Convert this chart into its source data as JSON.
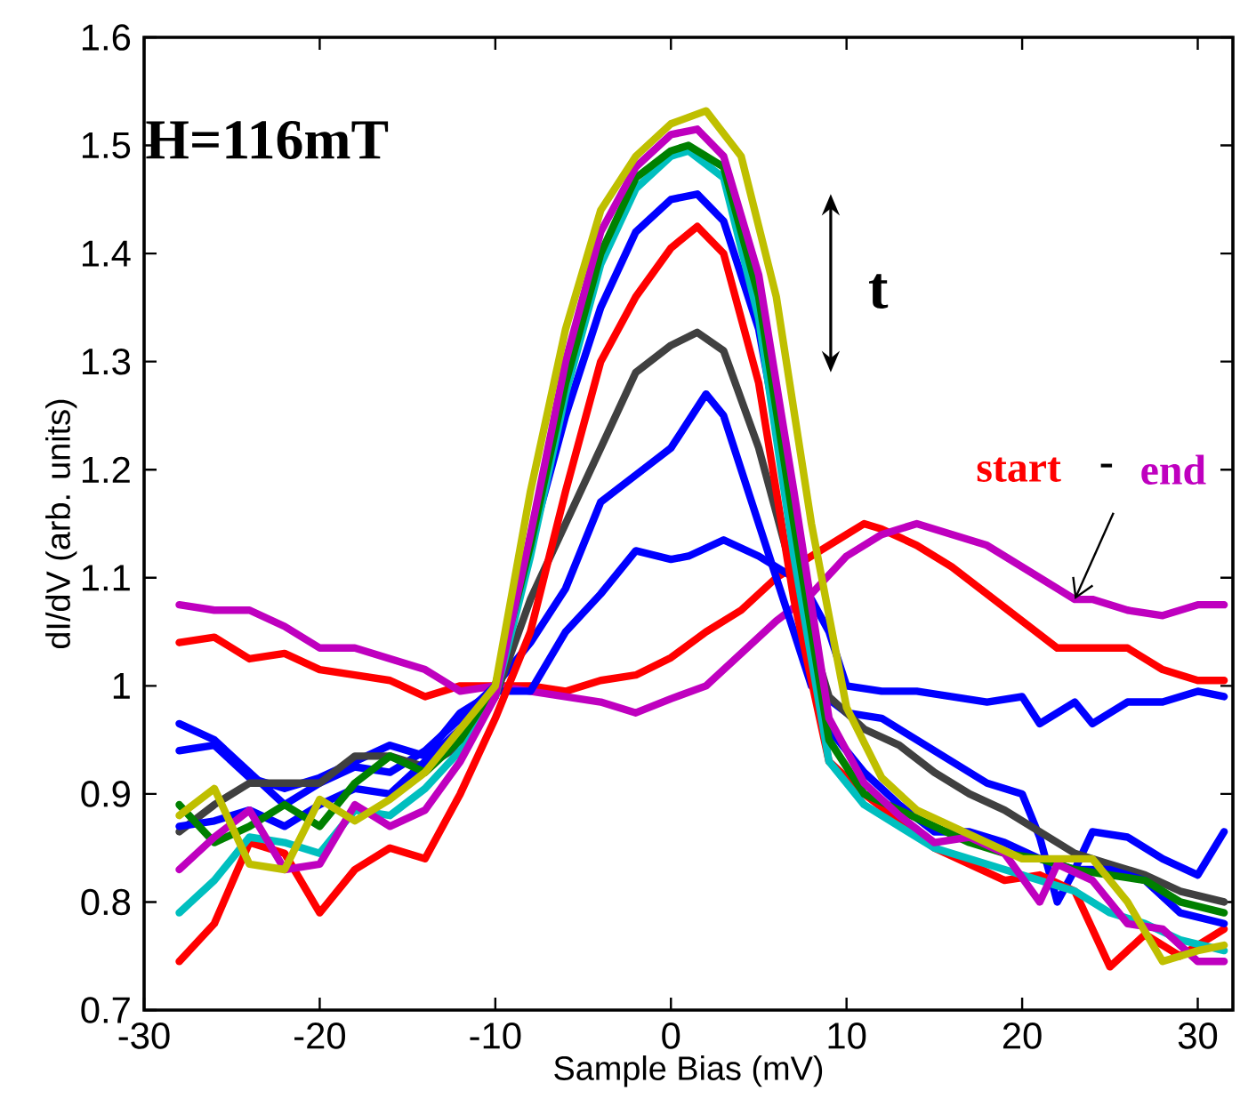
{
  "chart_data": {
    "type": "line",
    "xlabel": "Sample Bias (mV)",
    "ylabel": "dI/dV (arb. units)",
    "xlim": [
      -30,
      32
    ],
    "ylim": [
      0.7,
      1.6
    ],
    "xticks": [
      -30,
      -20,
      -10,
      0,
      10,
      20,
      30
    ],
    "yticks": [
      0.7,
      0.8,
      0.9,
      1,
      1.1,
      1.2,
      1.3,
      1.4,
      1.5,
      1.6
    ],
    "annotations": [
      "H=116mT",
      "t",
      "start",
      "-",
      {
        "text": "end",
        "x": 23,
        "y": 1.08
      }
    ],
    "series": [
      {
        "color": "#ff0000",
        "x": [
          -28,
          -26,
          -24,
          -22,
          -20,
          -18,
          -16,
          -14,
          -12,
          -10,
          -8,
          -6,
          -4,
          -2,
          0,
          2,
          4,
          6,
          8,
          10,
          11,
          12,
          14,
          16,
          18,
          20,
          22,
          24,
          26,
          28,
          30,
          31.5
        ],
        "values": [
          1.04,
          1.045,
          1.025,
          1.03,
          1.015,
          1.01,
          1.005,
          0.99,
          1.0,
          1.0,
          1.0,
          0.995,
          1.005,
          1.01,
          1.026,
          1.05,
          1.07,
          1.1,
          1.12,
          1.14,
          1.15,
          1.145,
          1.13,
          1.11,
          1.085,
          1.06,
          1.035,
          1.035,
          1.035,
          1.015,
          1.005,
          1.005
        ]
      },
      {
        "color": "#bf00bf",
        "x": [
          -28,
          -26,
          -24,
          -22,
          -20,
          -18,
          -16,
          -14,
          -12,
          -10,
          -8,
          -6,
          -4,
          -2,
          0,
          2,
          4,
          6,
          8,
          10,
          12,
          14,
          16,
          18,
          20,
          22,
          23,
          24,
          26,
          28,
          30,
          31.5
        ],
        "values": [
          1.075,
          1.07,
          1.07,
          1.055,
          1.035,
          1.035,
          1.025,
          1.015,
          0.995,
          1.0,
          0.995,
          0.99,
          0.985,
          0.975,
          0.988,
          1.0,
          1.03,
          1.06,
          1.085,
          1.12,
          1.14,
          1.15,
          1.14,
          1.13,
          1.11,
          1.09,
          1.08,
          1.08,
          1.07,
          1.065,
          1.075,
          1.075
        ]
      },
      {
        "color": "#0000ff",
        "x": [
          -28,
          -26,
          -24,
          -22,
          -20,
          -18,
          -16,
          -14,
          -12,
          -10,
          -8,
          -6,
          -4,
          -2,
          0,
          1,
          3,
          5,
          7,
          8,
          9,
          10,
          12,
          14,
          16,
          18,
          20,
          21,
          23,
          24,
          26,
          28,
          30,
          31.5
        ],
        "values": [
          0.94,
          0.945,
          0.915,
          0.905,
          0.915,
          0.93,
          0.945,
          0.935,
          0.975,
          0.995,
          0.995,
          1.05,
          1.085,
          1.125,
          1.117,
          1.12,
          1.135,
          1.12,
          1.1,
          1.08,
          1.05,
          1.0,
          0.995,
          0.995,
          0.99,
          0.985,
          0.99,
          0.965,
          0.985,
          0.965,
          0.985,
          0.985,
          0.995,
          0.99
        ]
      },
      {
        "color": "#0000ff",
        "x": [
          -28,
          -26,
          -24,
          -22,
          -20,
          -18,
          -16,
          -14,
          -12,
          -10,
          -8,
          -6,
          -4,
          -2,
          0,
          2,
          3,
          4,
          6,
          8,
          10,
          12,
          14,
          16,
          18,
          20,
          21,
          22,
          23,
          24,
          26,
          28,
          30,
          31.5
        ],
        "values": [
          0.965,
          0.95,
          0.92,
          0.89,
          0.91,
          0.925,
          0.92,
          0.94,
          0.97,
          1.0,
          1.04,
          1.09,
          1.17,
          1.195,
          1.22,
          1.27,
          1.25,
          1.2,
          1.1,
          1.0,
          0.975,
          0.97,
          0.95,
          0.93,
          0.91,
          0.9,
          0.86,
          0.8,
          0.83,
          0.865,
          0.86,
          0.84,
          0.825,
          0.865
        ]
      },
      {
        "color": "#404040",
        "x": [
          -28,
          -26,
          -24,
          -22,
          -20,
          -18,
          -16,
          -14,
          -12,
          -10,
          -8,
          -6,
          -4,
          -2,
          0,
          1.5,
          3,
          5,
          7,
          9,
          11,
          13,
          15,
          17,
          19,
          21,
          23,
          25,
          27,
          29,
          31.5
        ],
        "values": [
          0.865,
          0.89,
          0.91,
          0.91,
          0.91,
          0.935,
          0.935,
          0.925,
          0.945,
          0.99,
          1.08,
          1.15,
          1.22,
          1.29,
          1.315,
          1.327,
          1.31,
          1.22,
          1.1,
          0.99,
          0.96,
          0.945,
          0.92,
          0.9,
          0.885,
          0.865,
          0.845,
          0.835,
          0.825,
          0.81,
          0.8
        ]
      },
      {
        "color": "#ff0000",
        "x": [
          -28,
          -26,
          -24,
          -22,
          -20,
          -18,
          -16,
          -14,
          -12,
          -10,
          -8,
          -6,
          -4,
          -2,
          0,
          1.5,
          3,
          5,
          7,
          9,
          11,
          13,
          15,
          17,
          19,
          21,
          23,
          25,
          27,
          29,
          31.5
        ],
        "values": [
          0.745,
          0.78,
          0.855,
          0.845,
          0.79,
          0.83,
          0.85,
          0.84,
          0.9,
          0.97,
          1.05,
          1.18,
          1.3,
          1.36,
          1.405,
          1.425,
          1.4,
          1.28,
          1.08,
          0.93,
          0.9,
          0.875,
          0.85,
          0.835,
          0.82,
          0.825,
          0.81,
          0.74,
          0.77,
          0.75,
          0.775
        ]
      },
      {
        "color": "#0000ff",
        "x": [
          -28,
          -26,
          -24,
          -22,
          -20,
          -18,
          -16,
          -14,
          -12,
          -10,
          -8,
          -6,
          -4,
          -2,
          0,
          1.5,
          3,
          5,
          7,
          9,
          11,
          13,
          15,
          17,
          19,
          21,
          23,
          25,
          27,
          29,
          31.5
        ],
        "values": [
          0.87,
          0.875,
          0.885,
          0.87,
          0.89,
          0.905,
          0.9,
          0.93,
          0.96,
          1.0,
          1.13,
          1.25,
          1.35,
          1.42,
          1.45,
          1.455,
          1.43,
          1.33,
          1.15,
          0.96,
          0.92,
          0.89,
          0.865,
          0.865,
          0.855,
          0.84,
          0.83,
          0.83,
          0.82,
          0.79,
          0.78
        ]
      },
      {
        "color": "#00bfbf",
        "x": [
          -28,
          -26,
          -24,
          -22,
          -20,
          -18,
          -16,
          -14,
          -12,
          -10,
          -8,
          -6,
          -4,
          -2,
          0,
          1,
          3,
          5,
          7,
          9,
          11,
          13,
          15,
          17,
          19,
          21,
          23,
          25,
          27,
          29,
          31.5
        ],
        "values": [
          0.79,
          0.82,
          0.86,
          0.855,
          0.845,
          0.885,
          0.88,
          0.905,
          0.94,
          0.99,
          1.12,
          1.27,
          1.39,
          1.46,
          1.49,
          1.495,
          1.47,
          1.34,
          1.12,
          0.93,
          0.89,
          0.87,
          0.85,
          0.84,
          0.83,
          0.82,
          0.81,
          0.79,
          0.78,
          0.765,
          0.755
        ]
      },
      {
        "color": "#008000",
        "x": [
          -28,
          -26,
          -24,
          -22,
          -20,
          -18,
          -16,
          -14,
          -12,
          -10,
          -8,
          -6,
          -4,
          -2,
          0,
          1,
          3,
          5,
          7,
          9,
          11,
          13,
          15,
          17,
          19,
          21,
          23,
          25,
          27,
          29,
          31.5
        ],
        "values": [
          0.89,
          0.855,
          0.87,
          0.89,
          0.87,
          0.91,
          0.935,
          0.92,
          0.95,
          1.0,
          1.13,
          1.28,
          1.4,
          1.47,
          1.495,
          1.5,
          1.48,
          1.36,
          1.15,
          0.95,
          0.9,
          0.885,
          0.87,
          0.855,
          0.845,
          0.84,
          0.83,
          0.825,
          0.82,
          0.8,
          0.79
        ]
      },
      {
        "color": "#bf00bf",
        "x": [
          -28,
          -26,
          -24,
          -22,
          -20,
          -18,
          -16,
          -14,
          -12,
          -10,
          -8,
          -6,
          -4,
          -2,
          0,
          1.5,
          3,
          5,
          7,
          9,
          11,
          13,
          15,
          17,
          19,
          21,
          22,
          24,
          26,
          28,
          30,
          31.5
        ],
        "values": [
          0.83,
          0.86,
          0.885,
          0.83,
          0.835,
          0.89,
          0.87,
          0.885,
          0.93,
          0.99,
          1.14,
          1.3,
          1.42,
          1.48,
          1.51,
          1.515,
          1.49,
          1.38,
          1.18,
          0.97,
          0.91,
          0.88,
          0.855,
          0.86,
          0.845,
          0.8,
          0.835,
          0.82,
          0.78,
          0.775,
          0.745,
          0.745
        ]
      },
      {
        "color": "#bfbf00",
        "x": [
          -28,
          -26,
          -24,
          -22,
          -20,
          -18,
          -16,
          -14,
          -12,
          -10,
          -8,
          -6,
          -4,
          -2,
          0,
          2,
          4,
          6,
          8,
          10,
          12,
          14,
          16,
          18,
          20,
          22,
          24,
          26,
          28,
          30,
          31.5
        ],
        "values": [
          0.88,
          0.905,
          0.835,
          0.83,
          0.895,
          0.875,
          0.895,
          0.92,
          0.96,
          1.0,
          1.18,
          1.33,
          1.44,
          1.49,
          1.52,
          1.532,
          1.49,
          1.36,
          1.15,
          0.98,
          0.915,
          0.885,
          0.87,
          0.855,
          0.84,
          0.84,
          0.84,
          0.8,
          0.745,
          0.755,
          0.76
        ]
      }
    ]
  }
}
